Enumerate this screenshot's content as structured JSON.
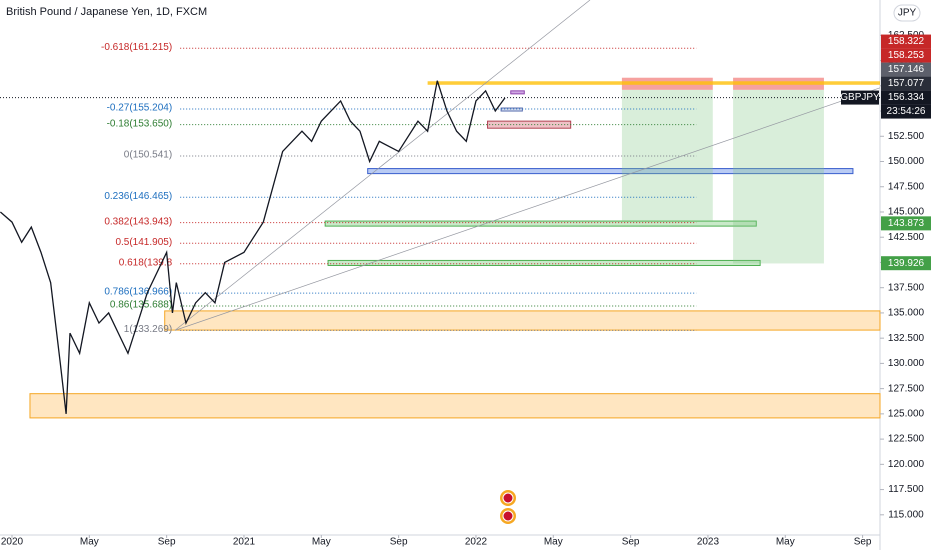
{
  "chart_data": {
    "type": "line",
    "title": "British Pound / Japanese Yen, 1D, FXCM",
    "ylim": [
      113,
      166
    ],
    "yticks": [
      {
        "value": 115,
        "label": "115.000"
      },
      {
        "value": 117.5,
        "label": "117.500"
      },
      {
        "value": 120,
        "label": "120.000"
      },
      {
        "value": 122.5,
        "label": "122.500"
      },
      {
        "value": 125,
        "label": "125.000"
      },
      {
        "value": 127.5,
        "label": "127.500"
      },
      {
        "value": 130,
        "label": "130.000"
      },
      {
        "value": 132.5,
        "label": "132.500"
      },
      {
        "value": 135,
        "label": "135.000"
      },
      {
        "value": 137.5,
        "label": "137.500"
      },
      {
        "value": 140,
        "label": "140.000"
      },
      {
        "value": 142.5,
        "label": "142.500"
      },
      {
        "value": 145,
        "label": "145.000"
      },
      {
        "value": 147.5,
        "label": "147.500"
      },
      {
        "value": 150,
        "label": "150.000"
      },
      {
        "value": 152.5,
        "label": "152.500"
      },
      {
        "value": 155,
        "label": "155.000"
      },
      {
        "value": 157.5,
        "label": "157.500"
      },
      {
        "value": 160,
        "label": "160.000"
      },
      {
        "value": 162.5,
        "label": "162.500"
      }
    ],
    "xlim": [
      -0.62,
      44.9
    ],
    "xticks": [
      {
        "value": 0,
        "label": "2020"
      },
      {
        "value": 4,
        "label": "May"
      },
      {
        "value": 8,
        "label": "Sep"
      },
      {
        "value": 12,
        "label": "2021"
      },
      {
        "value": 16,
        "label": "May"
      },
      {
        "value": 20,
        "label": "Sep"
      },
      {
        "value": 24,
        "label": "2022"
      },
      {
        "value": 28,
        "label": "May"
      },
      {
        "value": 32,
        "label": "Sep"
      },
      {
        "value": 36,
        "label": "2023"
      },
      {
        "value": 40,
        "label": "May"
      },
      {
        "value": 44,
        "label": "Sep"
      }
    ],
    "currency": "JPY",
    "symbol": "GBPJPY",
    "countdown": "23:54:26",
    "series": [
      {
        "name": "GBPJPY",
        "color": "#131722",
        "x": [
          -0.6,
          0,
          0.5,
          1,
          1.5,
          2,
          2.5,
          2.8,
          3,
          3.5,
          4,
          4.5,
          5,
          5.5,
          6,
          6.5,
          7,
          8,
          8.3,
          8.5,
          9,
          9.5,
          10,
          10.5,
          11,
          12,
          13,
          14,
          15,
          15.5,
          16,
          17,
          17.5,
          18,
          18.5,
          19,
          20,
          21,
          21.5,
          22,
          22.5,
          23,
          23.5,
          24,
          24.5,
          25,
          25.5
        ],
        "values": [
          145,
          144,
          142,
          143.5,
          141,
          138,
          130,
          125,
          133,
          131,
          136,
          134,
          135,
          133,
          131,
          134,
          137,
          141,
          135,
          138,
          134,
          136,
          137,
          136,
          140,
          141,
          144,
          151,
          153,
          152,
          154,
          156,
          154,
          153,
          150,
          152,
          151,
          154,
          153,
          158,
          155,
          153,
          152,
          156,
          157,
          155,
          156.3
        ]
      }
    ],
    "fib_x": [
      8.7,
      35.4
    ],
    "fib_levels": [
      {
        "label": "-0.618(161.215)",
        "value": 161.215,
        "color": "#c62828"
      },
      {
        "label": "-0.27(155.204)",
        "value": 155.204,
        "color": "#1e6fbf"
      },
      {
        "label": "-0.18(153.650)",
        "value": 153.65,
        "color": "#2e7d32"
      },
      {
        "label": "0(150.541)",
        "value": 150.541,
        "color": "#787b86"
      },
      {
        "label": "0.236(146.465)",
        "value": 146.465,
        "color": "#1e6fbf"
      },
      {
        "label": "0.382(143.943)",
        "value": 143.943,
        "color": "#c62828"
      },
      {
        "label": "0.5(141.905)",
        "value": 141.905,
        "color": "#c62828"
      },
      {
        "label": "0.618(139.8",
        "value": 139.867,
        "color": "#c62828"
      },
      {
        "label": "0.786(136.966)",
        "value": 136.966,
        "color": "#1e6fbf"
      },
      {
        "label": "0.86(135.688)",
        "value": 135.688,
        "color": "#2e7d32"
      },
      {
        "label": "1(133.269)",
        "value": 133.269,
        "color": "#787b86"
      }
    ],
    "zones": [
      {
        "y": [
          133.3,
          135.2
        ],
        "x": [
          7.9,
          44.9
        ],
        "fill": "rgba(255,183,77,0.35)",
        "stroke": "#f5a623"
      },
      {
        "y": [
          124.6,
          127
        ],
        "x": [
          0.93,
          44.9
        ],
        "fill": "rgba(255,183,77,0.35)",
        "stroke": "#f5a623"
      },
      {
        "y": [
          148.8,
          149.3
        ],
        "x": [
          18.4,
          43.5
        ],
        "fill": "rgba(100,140,230,0.45)",
        "stroke": "#3a5fcd"
      },
      {
        "y": [
          143.6,
          144.1
        ],
        "x": [
          16.2,
          38.5
        ],
        "fill": "rgba(120,200,120,0.4)",
        "stroke": "#4caf50"
      },
      {
        "y": [
          139.7,
          140.2
        ],
        "x": [
          16.35,
          38.7
        ],
        "fill": "rgba(120,200,120,0.4)",
        "stroke": "#4caf50"
      },
      {
        "y": [
          153.3,
          154
        ],
        "x": [
          24.6,
          28.9
        ],
        "fill": "rgba(220,120,130,0.45)",
        "stroke": "#b04050"
      },
      {
        "y": [
          156.7,
          157
        ],
        "x": [
          25.8,
          26.5
        ],
        "fill": "rgba(160,80,200,0.5)",
        "stroke": "#8e44ad"
      },
      {
        "y": [
          155,
          155.3
        ],
        "x": [
          25.3,
          26.4
        ],
        "fill": "rgba(120,140,200,0.3)",
        "stroke": "#5a6fb0"
      },
      {
        "y": [
          157.1,
          158.3
        ],
        "x": [
          31.55,
          36.25
        ],
        "fill": "rgba(239,83,80,0.55)",
        "stroke": "none"
      },
      {
        "y": [
          144,
          157.1
        ],
        "x": [
          31.55,
          36.25
        ],
        "fill": "rgba(129,199,132,0.3)",
        "stroke": "none"
      },
      {
        "y": [
          157.1,
          158.3
        ],
        "x": [
          37.3,
          42
        ],
        "fill": "rgba(239,83,80,0.55)",
        "stroke": "none"
      },
      {
        "y": [
          139.9,
          157.1
        ],
        "x": [
          37.3,
          42
        ],
        "fill": "rgba(129,199,132,0.3)",
        "stroke": "none"
      },
      {
        "y": [
          157.6,
          157.95
        ],
        "x": [
          21.5,
          44.9
        ],
        "fill": "rgba(255,193,7,0.8)",
        "stroke": "none"
      }
    ],
    "trendlines": [
      {
        "x": [
          8.43,
          29.9
        ],
        "y": [
          133.27,
          166
        ]
      },
      {
        "x": [
          8.43,
          44.9
        ],
        "y": [
          133.27,
          157.3
        ]
      }
    ],
    "last_price": 156.334,
    "price_labels": [
      {
        "value": 158.322,
        "label": "158.322",
        "color": "#c62828"
      },
      {
        "value": 158.253,
        "label": "158.253",
        "color": "#c62828"
      },
      {
        "value": 157.146,
        "label": "157.146",
        "color": "#5d606b"
      },
      {
        "value": 157.077,
        "label": "157.077",
        "color": "#2a2e39"
      },
      {
        "value": 156.334,
        "label": "156.334",
        "color": "#131722"
      },
      {
        "value": 143.873,
        "label": "143.873",
        "color": "#43a047"
      },
      {
        "value": 139.926,
        "label": "139.926",
        "color": "#43a047"
      }
    ]
  }
}
